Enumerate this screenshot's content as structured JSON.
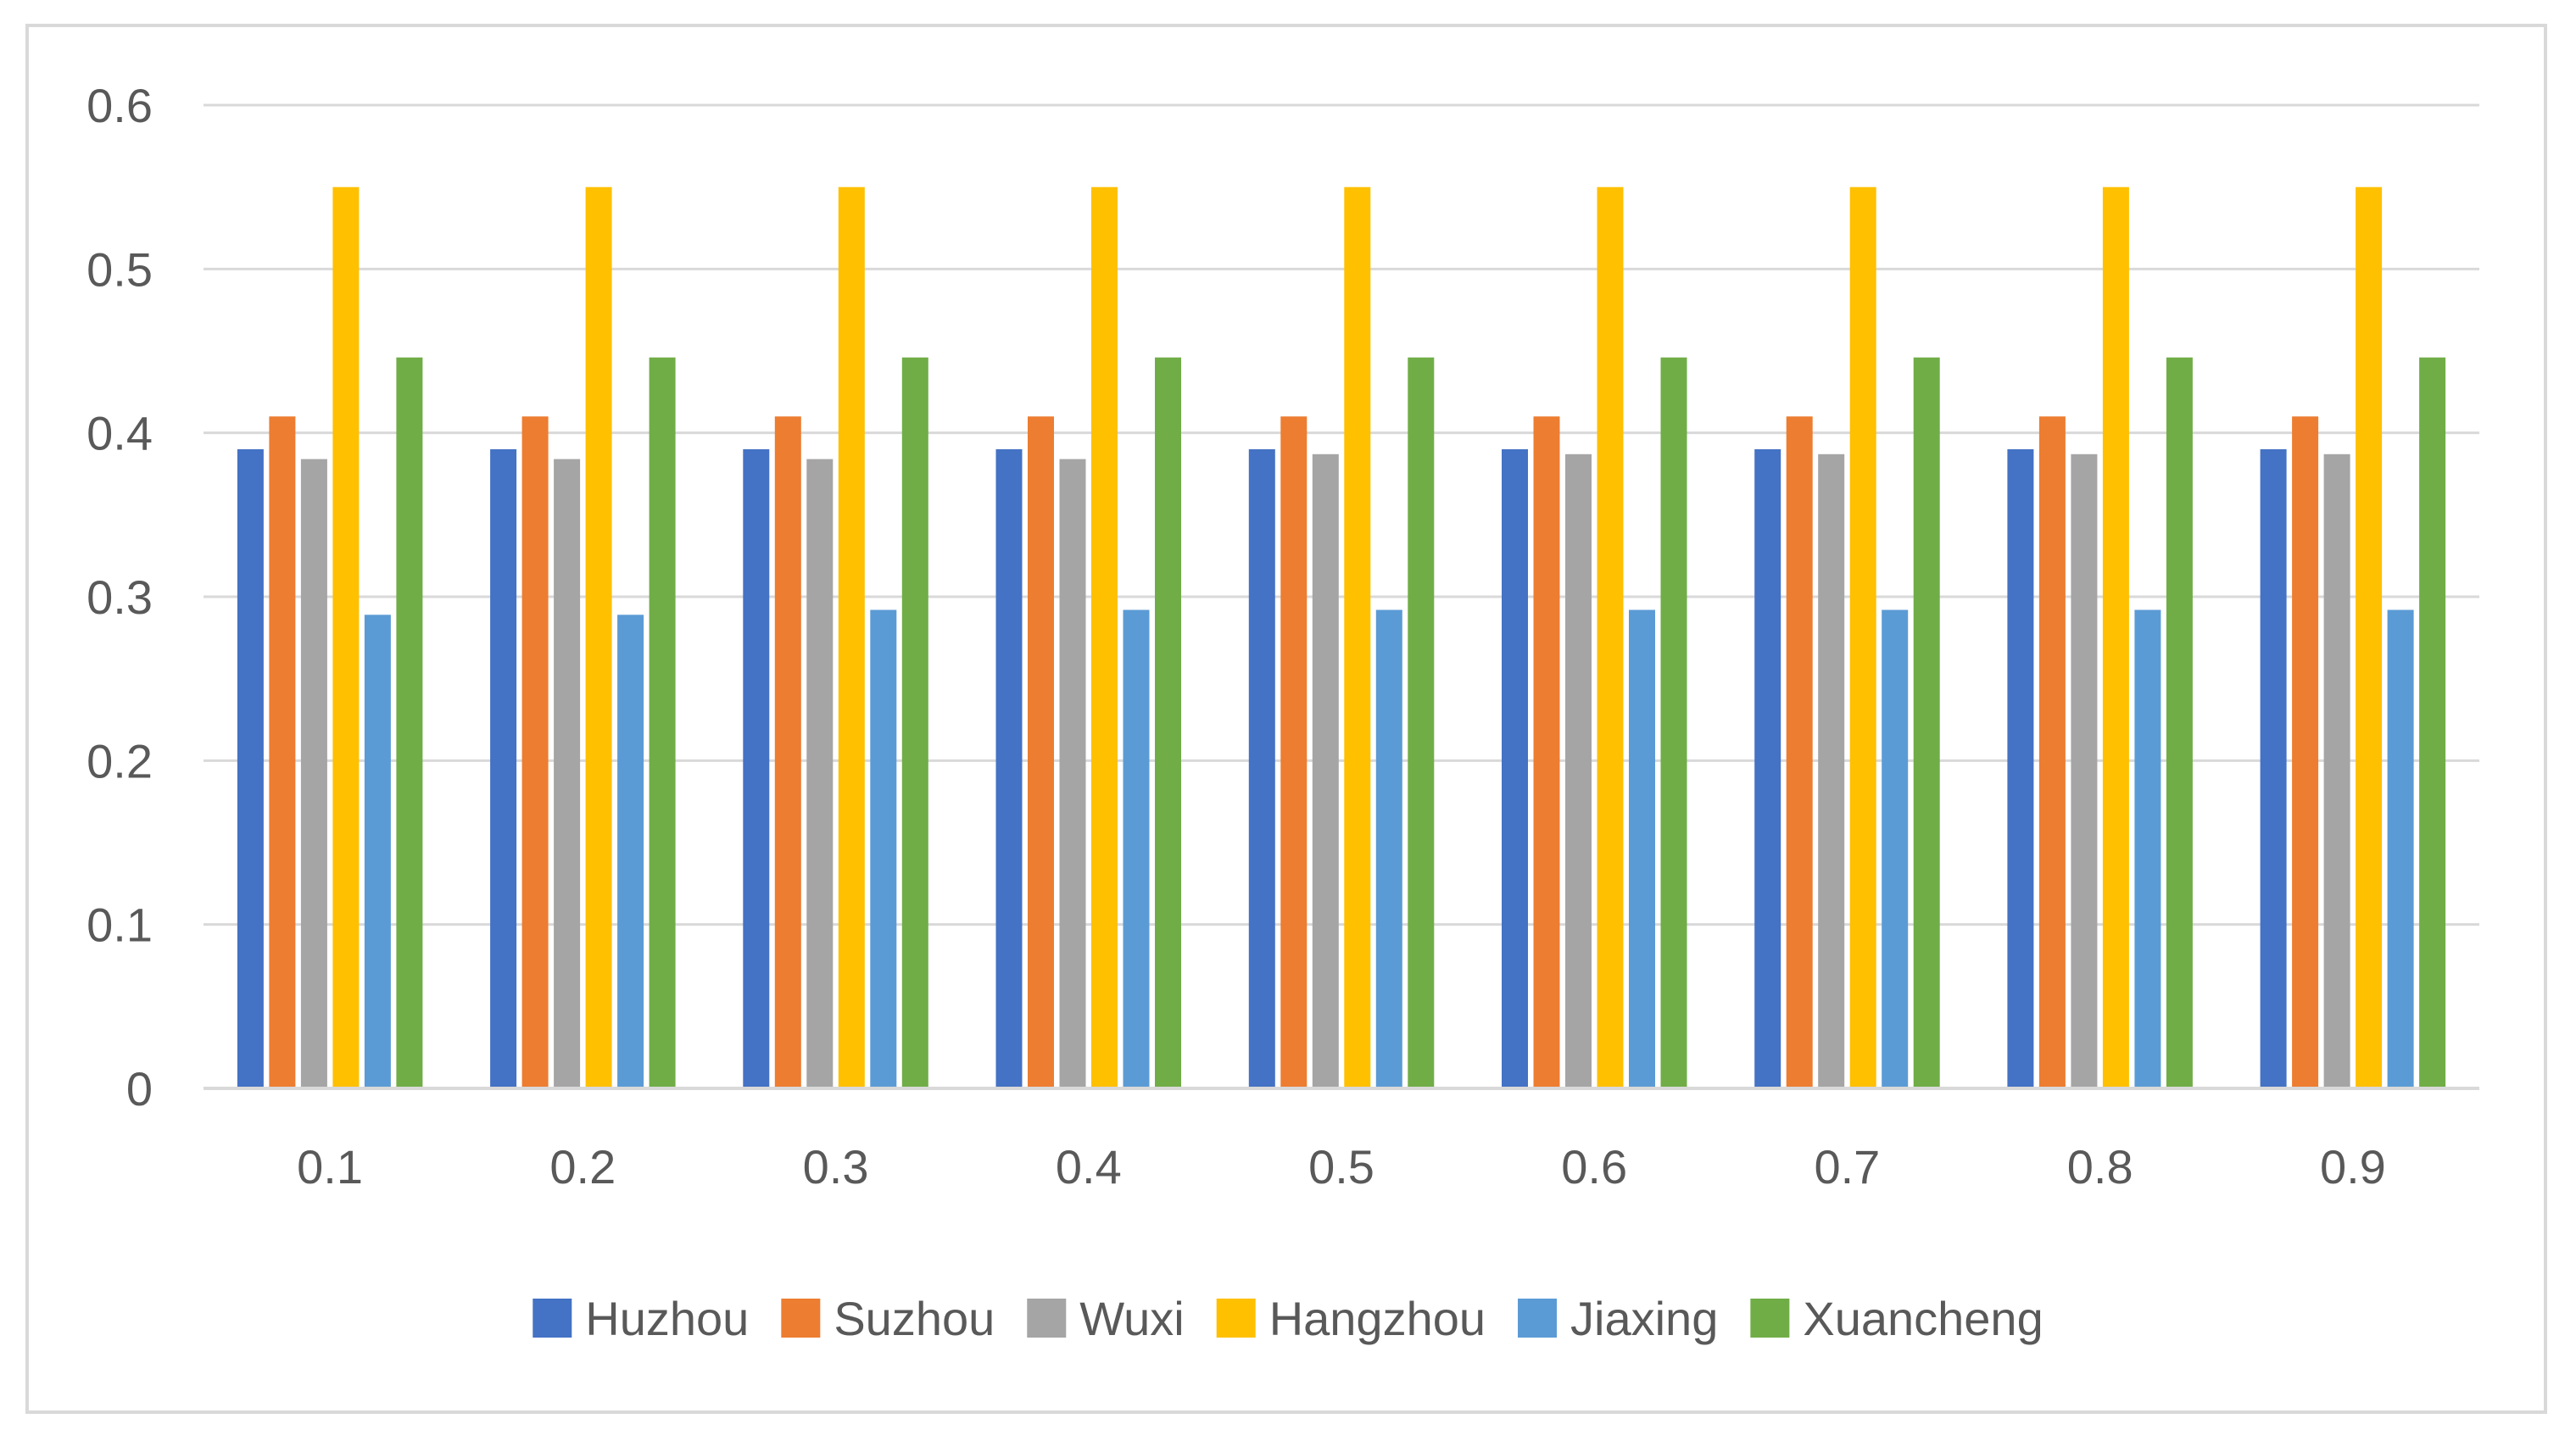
{
  "chart_data": {
    "type": "bar",
    "title": "",
    "xlabel": "",
    "ylabel": "",
    "categories": [
      "0.1",
      "0.2",
      "0.3",
      "0.4",
      "0.5",
      "0.6",
      "0.7",
      "0.8",
      "0.9"
    ],
    "ylim": [
      0,
      0.6
    ],
    "yticks": [
      "0",
      "0.1",
      "0.2",
      "0.3",
      "0.4",
      "0.5",
      "0.6"
    ],
    "grid": true,
    "legend_position": "bottom",
    "series": [
      {
        "name": "Huzhou",
        "color": "#4472C4",
        "values": [
          0.39,
          0.39,
          0.39,
          0.39,
          0.39,
          0.39,
          0.39,
          0.39,
          0.39
        ]
      },
      {
        "name": "Suzhou",
        "color": "#ED7D31",
        "values": [
          0.41,
          0.41,
          0.41,
          0.41,
          0.41,
          0.41,
          0.41,
          0.41,
          0.41
        ]
      },
      {
        "name": "Wuxi",
        "color": "#A5A5A5",
        "values": [
          0.384,
          0.384,
          0.384,
          0.384,
          0.387,
          0.387,
          0.387,
          0.387,
          0.387
        ]
      },
      {
        "name": "Hangzhou",
        "color": "#FFC000",
        "values": [
          0.55,
          0.55,
          0.55,
          0.55,
          0.55,
          0.55,
          0.55,
          0.55,
          0.55
        ]
      },
      {
        "name": "Jiaxing",
        "color": "#5B9BD5",
        "values": [
          0.289,
          0.289,
          0.292,
          0.292,
          0.292,
          0.292,
          0.292,
          0.292,
          0.292
        ]
      },
      {
        "name": "Xuancheng",
        "color": "#70AD47",
        "values": [
          0.446,
          0.446,
          0.446,
          0.446,
          0.446,
          0.446,
          0.446,
          0.446,
          0.446
        ]
      }
    ]
  }
}
